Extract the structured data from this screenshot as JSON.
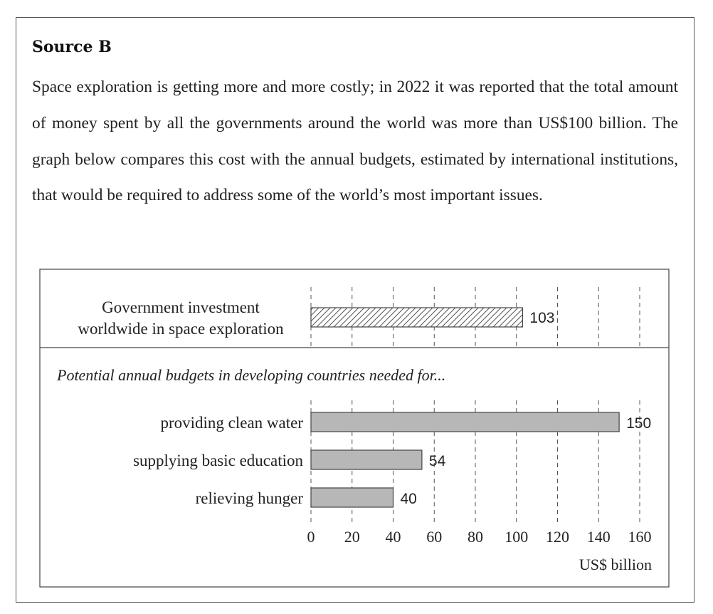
{
  "source": {
    "heading": "Source B",
    "passage": "Space exploration is getting more and more costly; in 2022 it was reported that the total amount of money spent by all the governments around the world was more than US$100 billion.  The graph below compares this cost with the annual budgets, estimated by international institutions, that would be required to address some of the world’s most important issues."
  },
  "colors": {
    "frame": "#555555",
    "bar_fill": "#b7b7b7",
    "bar_stroke": "#444444",
    "hatch": "#555555",
    "gridline": "#555555"
  },
  "chart_data": {
    "type": "bar",
    "orientation": "horizontal",
    "x_unit_label": "US$ billion",
    "xlim": [
      0,
      160
    ],
    "x_ticks": [
      0,
      20,
      40,
      60,
      80,
      100,
      120,
      140,
      160
    ],
    "grid": "dashed vertical",
    "groups": [
      {
        "name": "space",
        "heading": "",
        "style": "hatched",
        "bars": [
          {
            "label_lines": [
              "Government investment",
              "worldwide in space exploration"
            ],
            "value": 103
          }
        ]
      },
      {
        "name": "needs",
        "heading": "Potential annual budgets in developing countries needed for...",
        "style": "gray",
        "bars": [
          {
            "label_lines": [
              "providing clean water"
            ],
            "value": 150
          },
          {
            "label_lines": [
              "supplying basic education"
            ],
            "value": 54
          },
          {
            "label_lines": [
              "relieving hunger"
            ],
            "value": 40
          }
        ]
      }
    ]
  }
}
